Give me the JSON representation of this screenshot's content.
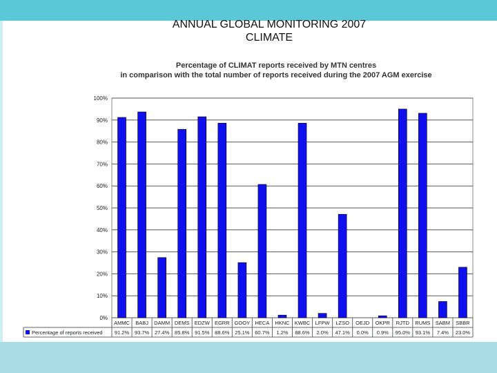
{
  "slide": {
    "title_line1": "ANNUAL GLOBAL MONITORING 2007",
    "title_line2": "CLIMATE"
  },
  "colors": {
    "bar": "#1010ee",
    "top_band": "#5bc8d8",
    "bottom_band": "#a9dde4"
  },
  "chart_data": {
    "type": "bar",
    "title": "Percentage of CLIMAT reports received by MTN centres",
    "subtitle": "in comparison with the total number of reports received during the 2007 AGM exercise",
    "ylim": [
      0,
      100
    ],
    "yticks": [
      "0%",
      "10%",
      "20%",
      "30%",
      "40%",
      "50%",
      "60%",
      "70%",
      "80%",
      "90%",
      "100%"
    ],
    "grid": true,
    "categories": [
      "AMMC",
      "BABJ",
      "DAMM",
      "DEMS",
      "EDZW",
      "EGRR",
      "GOOY",
      "HECA",
      "HKNC",
      "KWBC",
      "LFPW",
      "LZSO",
      "OEJD",
      "OKPR",
      "RJTD",
      "RUMS",
      "SABM",
      "SBBR"
    ],
    "series": [
      {
        "name": "Percentage of reports received",
        "values": [
          91.2,
          93.7,
          27.4,
          85.8,
          91.5,
          88.6,
          25.1,
          60.7,
          1.2,
          88.6,
          2.0,
          47.1,
          0.0,
          0.9,
          95.0,
          93.1,
          7.4,
          23.0
        ],
        "labels": [
          "91.2%",
          "93.7%",
          "27.4%",
          "85.8%",
          "91.5%",
          "88.6%",
          "25.1%",
          "60.7%",
          "1.2%",
          "88.6%",
          "2.0%",
          "47.1%",
          "0.0%",
          "0.9%",
          "95.0%",
          "93.1%",
          "7.4%",
          "23.0%"
        ]
      }
    ]
  }
}
